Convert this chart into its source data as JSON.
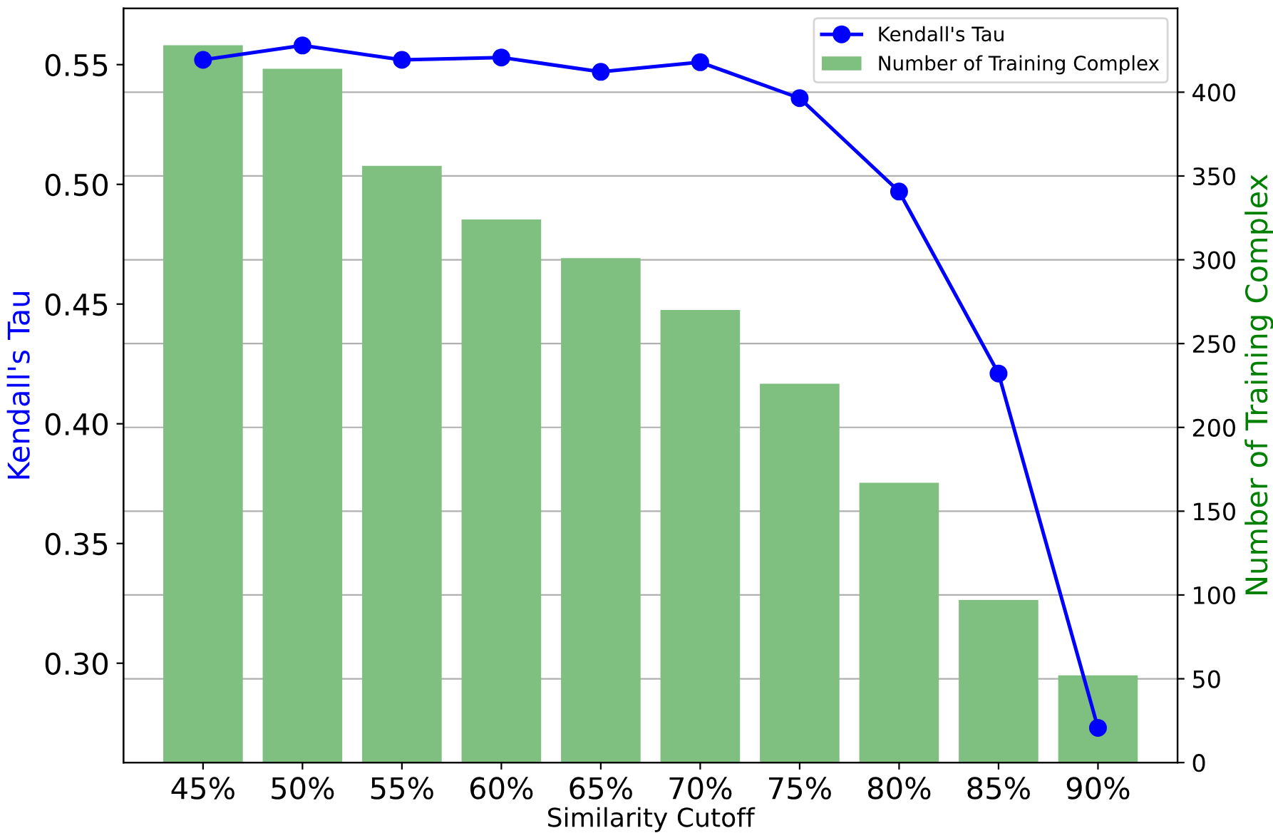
{
  "chart_data": {
    "type": "bar",
    "xlabel": "Similarity Cutoff",
    "ylabel": "Kendall's Tau",
    "y2label": "Number of Training Complex",
    "categories": [
      "45%",
      "50%",
      "55%",
      "60%",
      "65%",
      "70%",
      "75%",
      "80%",
      "85%",
      "90%"
    ],
    "series": [
      {
        "name": "Kendall's Tau",
        "type": "line",
        "color": "#0000ff",
        "marker": "circle",
        "values": [
          0.552,
          0.558,
          0.552,
          0.553,
          0.547,
          0.551,
          0.536,
          0.497,
          0.421,
          0.273
        ]
      },
      {
        "name": "Number of Training Complex",
        "axis": "y2",
        "color": "#7fbf7f",
        "values": [
          428,
          414,
          356,
          324,
          301,
          270,
          226,
          167,
          97,
          52
        ]
      }
    ],
    "ylim": [
      0.2585,
      0.5735
    ],
    "yticks": [
      {
        "value": 0.3,
        "label": "0.30"
      },
      0.35,
      {
        "value": 0.4,
        "label": "0.40"
      },
      0.45,
      {
        "value": 0.5,
        "label": "0.50"
      },
      0.55
    ],
    "y2lim": [
      0,
      450
    ],
    "y2ticks": [
      0,
      50,
      100,
      150,
      200,
      250,
      300,
      350,
      400
    ],
    "grid": "y2",
    "legend": "top right"
  }
}
